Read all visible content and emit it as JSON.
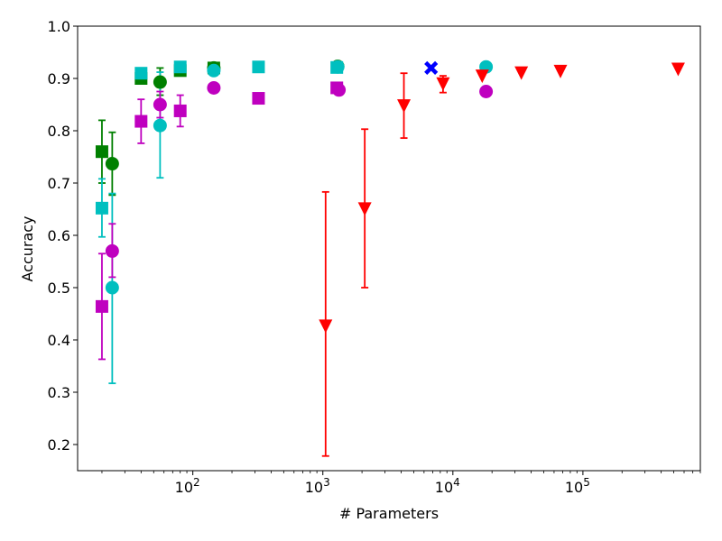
{
  "chart_data": {
    "type": "scatter",
    "title": "",
    "xlabel": "# Parameters",
    "ylabel": "Accuracy",
    "xscale": "log",
    "xlim": [
      13,
      800000
    ],
    "ylim": [
      0.15,
      1.0
    ],
    "yticks": [
      0.2,
      0.3,
      0.4,
      0.5,
      0.6,
      0.7,
      0.8,
      0.9,
      1.0
    ],
    "ytick_labels": [
      "0.2",
      "0.3",
      "0.4",
      "0.5",
      "0.6",
      "0.7",
      "0.8",
      "0.9",
      "1.0"
    ],
    "xticks": [
      {
        "value": 100,
        "base": "10",
        "exp": "2"
      },
      {
        "value": 1000,
        "base": "10",
        "exp": "3"
      },
      {
        "value": 10000,
        "base": "10",
        "exp": "4"
      },
      {
        "value": 100000,
        "base": "10",
        "exp": "5"
      }
    ],
    "series": [
      {
        "name": "green squares",
        "color": "#008000",
        "marker": "square",
        "points": [
          [
            20,
            0.76,
            0.82,
            0.7
          ],
          [
            40,
            0.9,
            null,
            null
          ],
          [
            80,
            0.915,
            null,
            null
          ],
          [
            145,
            0.92,
            null,
            null
          ]
        ]
      },
      {
        "name": "green circles",
        "color": "#008000",
        "marker": "circle",
        "points": [
          [
            24,
            0.737,
            0.797,
            0.677
          ],
          [
            56,
            0.893,
            0.92,
            0.868
          ],
          [
            145,
            0.92,
            null,
            null
          ],
          [
            1300,
            0.923,
            null,
            null
          ]
        ]
      },
      {
        "name": "cyan squares",
        "color": "#00bfbf",
        "marker": "square",
        "points": [
          [
            20,
            0.652,
            0.708,
            0.597
          ],
          [
            40,
            0.91,
            null,
            null
          ],
          [
            80,
            0.922,
            null,
            null
          ],
          [
            320,
            0.922,
            null,
            null
          ],
          [
            1280,
            0.921,
            null,
            null
          ]
        ]
      },
      {
        "name": "cyan circles",
        "color": "#00bfbf",
        "marker": "circle",
        "points": [
          [
            24,
            0.5,
            0.68,
            0.317
          ],
          [
            56,
            0.81,
            0.912,
            0.71
          ],
          [
            145,
            0.915,
            null,
            null
          ],
          [
            1300,
            0.922,
            null,
            null
          ],
          [
            18000,
            0.922,
            null,
            null
          ]
        ]
      },
      {
        "name": "magenta squares",
        "color": "#bf00bf",
        "marker": "square",
        "points": [
          [
            20,
            0.464,
            0.565,
            0.363
          ],
          [
            40,
            0.818,
            0.86,
            0.776
          ],
          [
            80,
            0.838,
            0.868,
            0.808
          ],
          [
            320,
            0.862,
            null,
            null
          ],
          [
            1280,
            0.882,
            null,
            null
          ]
        ]
      },
      {
        "name": "magenta circles",
        "color": "#bf00bf",
        "marker": "circle",
        "points": [
          [
            24,
            0.57,
            0.622,
            0.52
          ],
          [
            56,
            0.85,
            0.875,
            0.825
          ],
          [
            145,
            0.882,
            null,
            null
          ],
          [
            1330,
            0.878,
            null,
            null
          ],
          [
            18000,
            0.875,
            null,
            null
          ]
        ]
      },
      {
        "name": "red triangles",
        "color": "#ff0000",
        "marker": "triangle-down",
        "points": [
          [
            1050,
            0.427,
            0.683,
            0.178
          ],
          [
            2100,
            0.651,
            0.803,
            0.5
          ],
          [
            4200,
            0.848,
            0.91,
            0.786
          ],
          [
            8400,
            0.89,
            0.905,
            0.873
          ],
          [
            16800,
            0.905,
            null,
            null
          ],
          [
            33600,
            0.911,
            null,
            null
          ],
          [
            67200,
            0.914,
            null,
            null
          ],
          [
            540000,
            0.918,
            null,
            null
          ]
        ]
      },
      {
        "name": "blue cross",
        "color": "#0000ff",
        "marker": "x",
        "points": [
          [
            6800,
            0.92,
            null,
            null
          ]
        ]
      }
    ]
  }
}
